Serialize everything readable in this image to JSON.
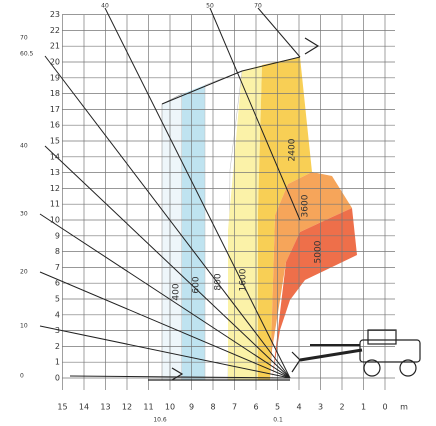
{
  "y_axis": {
    "labels": [
      "0",
      "1",
      "2",
      "3",
      "4",
      "5",
      "6",
      "7",
      "8",
      "9",
      "10",
      "11",
      "12",
      "13",
      "14",
      "15",
      "16",
      "17",
      "18",
      "19",
      "20",
      "21",
      "22",
      "23"
    ]
  },
  "x_axis": {
    "labels": [
      "15",
      "14",
      "13",
      "12",
      "11",
      "10",
      "9",
      "8",
      "7",
      "6",
      "5",
      "4",
      "3",
      "2",
      "1",
      "0"
    ],
    "unit": "m"
  },
  "angle_labels": {
    "left": [
      "0",
      "10",
      "20",
      "30",
      "40",
      "60.5",
      "70"
    ],
    "top": [
      "40",
      "50",
      "70"
    ]
  },
  "bottom_labels": [
    "10.6",
    "0.1"
  ],
  "zones": [
    "400",
    "600",
    "800",
    "1600",
    "2400",
    "3600",
    "5000"
  ]
}
